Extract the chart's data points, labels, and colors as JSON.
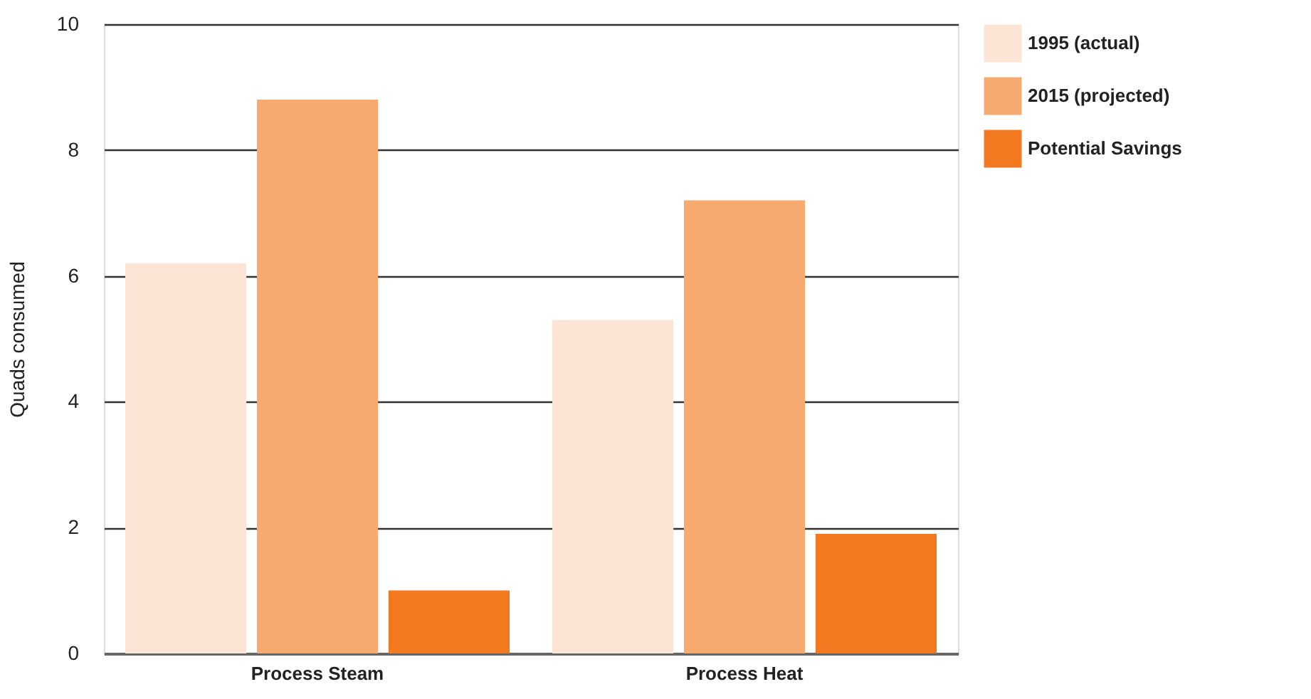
{
  "chart_data": {
    "type": "bar",
    "ylabel": "Quads consumed",
    "categories": [
      "Process Steam",
      "Process Heat"
    ],
    "series": [
      {
        "name": "1995 (actual)",
        "color": "#fde5d5",
        "values": [
          6.2,
          5.3
        ]
      },
      {
        "name": "2015 (projected)",
        "color": "#f7aa70",
        "values": [
          8.8,
          7.2
        ]
      },
      {
        "name": "Potential Savings",
        "color": "#f37920",
        "values": [
          1.0,
          1.9
        ]
      }
    ],
    "ylim": [
      0,
      10
    ],
    "yticks": [
      0,
      2,
      4,
      6,
      8,
      10
    ],
    "grid": "y",
    "legend": "right"
  }
}
